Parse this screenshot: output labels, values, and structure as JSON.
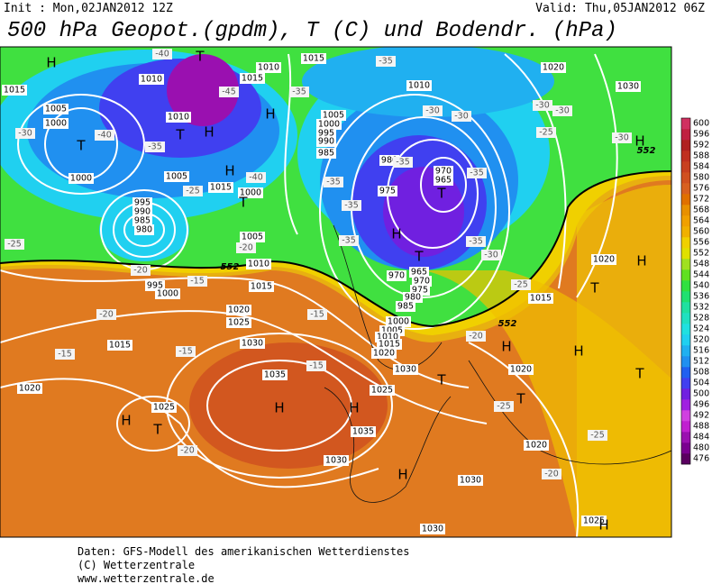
{
  "header": {
    "init": "Init : Mon,02JAN2012  12Z",
    "valid": "Valid: Thu,05JAN2012  06Z",
    "title": "500 hPa Geopot.(gpdm), T (C) und Bodendr. (hPa)"
  },
  "map": {
    "pressure_centers": [
      "H",
      "T",
      "H",
      "T",
      "T",
      "H",
      "H",
      "T",
      "T",
      "H",
      "T",
      "H",
      "H",
      "T",
      "H",
      "H",
      "T",
      "T",
      "T",
      "H",
      "T",
      "H",
      "H",
      "H",
      "H"
    ],
    "isobar_labels": [
      1015,
      1010,
      1015,
      1010,
      1015,
      1005,
      1000,
      1010,
      1005,
      1015,
      1000,
      1000,
      995,
      990,
      985,
      980,
      1005,
      1010,
      995,
      1000,
      1015,
      1020,
      1025,
      1030,
      1035,
      1035,
      1030,
      1025,
      1020,
      1015,
      1005,
      1000,
      995,
      990,
      985,
      980,
      975,
      970,
      965,
      970,
      965,
      970,
      975,
      980,
      985,
      1000,
      1005,
      1010,
      1015,
      1020,
      1025,
      1030,
      1010,
      1020,
      1030,
      1015,
      1020,
      1020,
      1020,
      1030,
      1025,
      1030
    ],
    "temperature_labels": [
      -40,
      -35,
      -35,
      -45,
      -30,
      -40,
      -35,
      -25,
      -40,
      -35,
      -35,
      -35,
      -30,
      -30,
      -35,
      -35,
      -35,
      -30,
      -25,
      -20,
      -20,
      -15,
      -20,
      -15,
      -15,
      -15,
      -15,
      -25,
      -30,
      -30,
      -30,
      -25,
      -20,
      -25,
      -20,
      -20,
      -25
    ],
    "height_labels": [
      552,
      552,
      552
    ]
  },
  "colorbar": {
    "ticks": [
      476,
      480,
      484,
      488,
      492,
      496,
      500,
      504,
      508,
      512,
      516,
      520,
      524,
      528,
      532,
      536,
      540,
      544,
      548,
      552,
      556,
      560,
      564,
      568,
      572,
      576,
      580,
      584,
      588,
      592,
      596,
      600
    ],
    "colors": [
      "#5a0060",
      "#7a0090",
      "#9a10b0",
      "#c020d0",
      "#d040e0",
      "#a020e0",
      "#7020e0",
      "#4040f0",
      "#2060f0",
      "#2090f0",
      "#20b0f0",
      "#20d0f0",
      "#20e0e0",
      "#20e0c0",
      "#20e0a0",
      "#20e070",
      "#30e040",
      "#60e020",
      "#a0e020",
      "#e0e000",
      "#f0d000",
      "#f0b000",
      "#f0a000",
      "#e89000",
      "#e07000",
      "#d86020",
      "#d05020",
      "#c84020",
      "#c03020",
      "#b02020",
      "#c02040",
      "#d03060"
    ]
  },
  "footer": {
    "lines": [
      "Daten: GFS-Modell des amerikanischen Wetterdienstes",
      "(C) Wetterzentrale",
      "www.wetterzentrale.de"
    ]
  }
}
